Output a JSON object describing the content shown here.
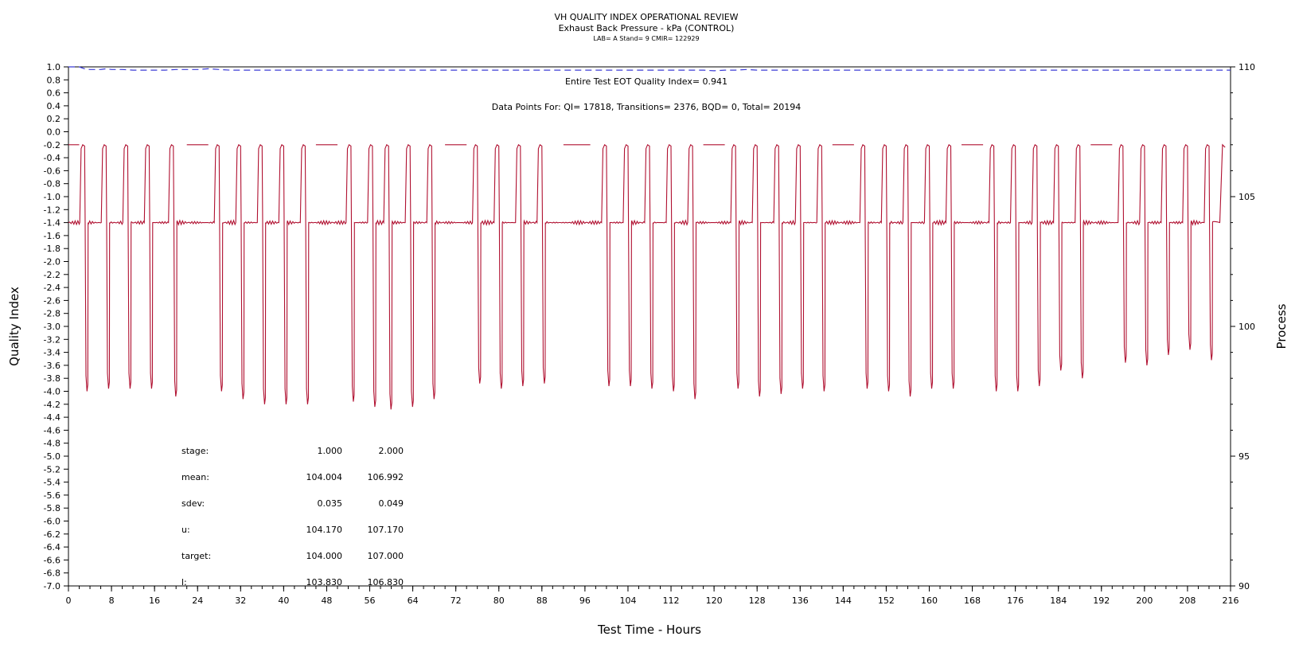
{
  "chart_data": {
    "type": "line",
    "title": "VH QUALITY INDEX OPERATIONAL REVIEW",
    "subtitle": "Exhaust Back Pressure - kPa (CONTROL)",
    "lab_line": "LAB= A Stand= 9 CMIR= 122929",
    "xlabel": "Test Time - Hours",
    "ylabel_left": "Quality Index",
    "ylabel_right": "Process",
    "xlim": [
      0,
      216
    ],
    "ylim_left": [
      -7.0,
      1.0
    ],
    "ylim_right": [
      90,
      110
    ],
    "x_ticks": [
      "0",
      "8",
      "16",
      "24",
      "32",
      "40",
      "48",
      "56",
      "64",
      "72",
      "80",
      "88",
      "96",
      "104",
      "112",
      "120",
      "128",
      "136",
      "144",
      "152",
      "160",
      "168",
      "176",
      "184",
      "192",
      "200",
      "208",
      "216"
    ],
    "y_ticks_left": [
      "1.0",
      "0.8",
      "0.6",
      "0.4",
      "0.2",
      "0.0",
      "-0.2",
      "-0.4",
      "-0.6",
      "-0.8",
      "-1.0",
      "-1.2",
      "-1.4",
      "-1.6",
      "-1.8",
      "-2.0",
      "-2.2",
      "-2.4",
      "-2.6",
      "-2.8",
      "-3.0",
      "-3.2",
      "-3.4",
      "-3.6",
      "-3.8",
      "-4.0",
      "-4.2",
      "-4.4",
      "-4.6",
      "-4.8",
      "-5.0",
      "-5.2",
      "-5.4",
      "-5.6",
      "-5.8",
      "-6.0",
      "-6.2",
      "-6.4",
      "-6.6",
      "-6.8",
      "-7.0"
    ],
    "y_ticks_right": [
      "110",
      "105",
      "100",
      "95",
      "90"
    ],
    "annotations": {
      "eot_quality_index": "Entire Test EOT Quality Index=   0.941",
      "data_points": "Data Points For: QI= 17818, Transitions=  2376, BQD=     0, Total= 20194"
    },
    "stats": {
      "header": {
        "label": "stage:",
        "v1": "1.000",
        "v2": "2.000"
      },
      "rows": [
        {
          "label": "mean:",
          "v1": "104.004",
          "v2": "106.992"
        },
        {
          "label": "sdev:",
          "v1": "0.035",
          "v2": "0.049"
        },
        {
          "label": "u:",
          "v1": "104.170",
          "v2": "107.170"
        },
        {
          "label": "target:",
          "v1": "104.000",
          "v2": "107.000"
        },
        {
          "label": "l:",
          "v1": "103.830",
          "v2": "106.830"
        }
      ]
    },
    "series": [
      {
        "name": "Quality Index",
        "color": "#3b3bd6",
        "style": "dashed",
        "axis": "left",
        "x": [
          0,
          2,
          3,
          4,
          6,
          7,
          8,
          10,
          12,
          14,
          16,
          18,
          20,
          22,
          24,
          26,
          28,
          30,
          40,
          50,
          60,
          70,
          80,
          90,
          100,
          110,
          118,
          120,
          122,
          124,
          126,
          128,
          140,
          160,
          180,
          200,
          216
        ],
        "y": [
          1.0,
          1.0,
          0.97,
          0.96,
          0.96,
          0.97,
          0.96,
          0.96,
          0.95,
          0.95,
          0.95,
          0.95,
          0.96,
          0.96,
          0.96,
          0.97,
          0.96,
          0.95,
          0.95,
          0.95,
          0.95,
          0.95,
          0.95,
          0.95,
          0.95,
          0.95,
          0.95,
          0.94,
          0.95,
          0.95,
          0.96,
          0.95,
          0.95,
          0.95,
          0.95,
          0.95,
          0.95
        ]
      },
      {
        "name": "Process",
        "color": "#b01030",
        "style": "solid",
        "axis": "right",
        "base": 104.0,
        "high": 107.0,
        "cycles": [
          {
            "t": 2.5,
            "min": 97.5
          },
          {
            "t": 6.5,
            "min": 97.6
          },
          {
            "t": 10.5,
            "min": 97.6
          },
          {
            "t": 14.5,
            "min": 97.6
          },
          {
            "t": 19.0,
            "min": 97.3
          },
          {
            "t": 27.5,
            "min": 97.5
          },
          {
            "t": 31.5,
            "min": 97.2
          },
          {
            "t": 35.5,
            "min": 97.0
          },
          {
            "t": 39.5,
            "min": 97.0
          },
          {
            "t": 43.5,
            "min": 97.0
          },
          {
            "t": 52.0,
            "min": 97.1
          },
          {
            "t": 56.0,
            "min": 96.9
          },
          {
            "t": 59.0,
            "min": 96.8
          },
          {
            "t": 63.0,
            "min": 96.9
          },
          {
            "t": 67.0,
            "min": 97.2
          },
          {
            "t": 75.5,
            "min": 97.8
          },
          {
            "t": 79.5,
            "min": 97.6
          },
          {
            "t": 83.5,
            "min": 97.7
          },
          {
            "t": 87.5,
            "min": 97.8
          },
          {
            "t": 99.5,
            "min": 97.7
          },
          {
            "t": 103.5,
            "min": 97.7
          },
          {
            "t": 107.5,
            "min": 97.6
          },
          {
            "t": 111.5,
            "min": 97.5
          },
          {
            "t": 115.5,
            "min": 97.2
          },
          {
            "t": 123.5,
            "min": 97.6
          },
          {
            "t": 127.5,
            "min": 97.3
          },
          {
            "t": 131.5,
            "min": 97.4
          },
          {
            "t": 135.5,
            "min": 97.6
          },
          {
            "t": 139.5,
            "min": 97.5
          },
          {
            "t": 147.5,
            "min": 97.6
          },
          {
            "t": 151.5,
            "min": 97.5
          },
          {
            "t": 155.5,
            "min": 97.3
          },
          {
            "t": 159.5,
            "min": 97.6
          },
          {
            "t": 163.5,
            "min": 97.6
          },
          {
            "t": 171.5,
            "min": 97.5
          },
          {
            "t": 175.5,
            "min": 97.5
          },
          {
            "t": 179.5,
            "min": 97.7
          },
          {
            "t": 183.5,
            "min": 98.3
          },
          {
            "t": 187.5,
            "min": 98.0
          },
          {
            "t": 195.5,
            "min": 98.6
          },
          {
            "t": 199.5,
            "min": 98.5
          },
          {
            "t": 203.5,
            "min": 98.9
          },
          {
            "t": 207.5,
            "min": 99.1
          },
          {
            "t": 211.5,
            "min": 98.7
          }
        ],
        "plateaus": [
          {
            "from": 0.0,
            "to": 2.0
          },
          {
            "from": 22.0,
            "to": 26.0
          },
          {
            "from": 46.0,
            "to": 50.0
          },
          {
            "from": 70.0,
            "to": 74.0
          },
          {
            "from": 92.0,
            "to": 97.0
          },
          {
            "from": 118.0,
            "to": 122.0
          },
          {
            "from": 142.0,
            "to": 146.0
          },
          {
            "from": 166.0,
            "to": 170.0
          },
          {
            "from": 190.0,
            "to": 194.0
          }
        ]
      }
    ]
  }
}
